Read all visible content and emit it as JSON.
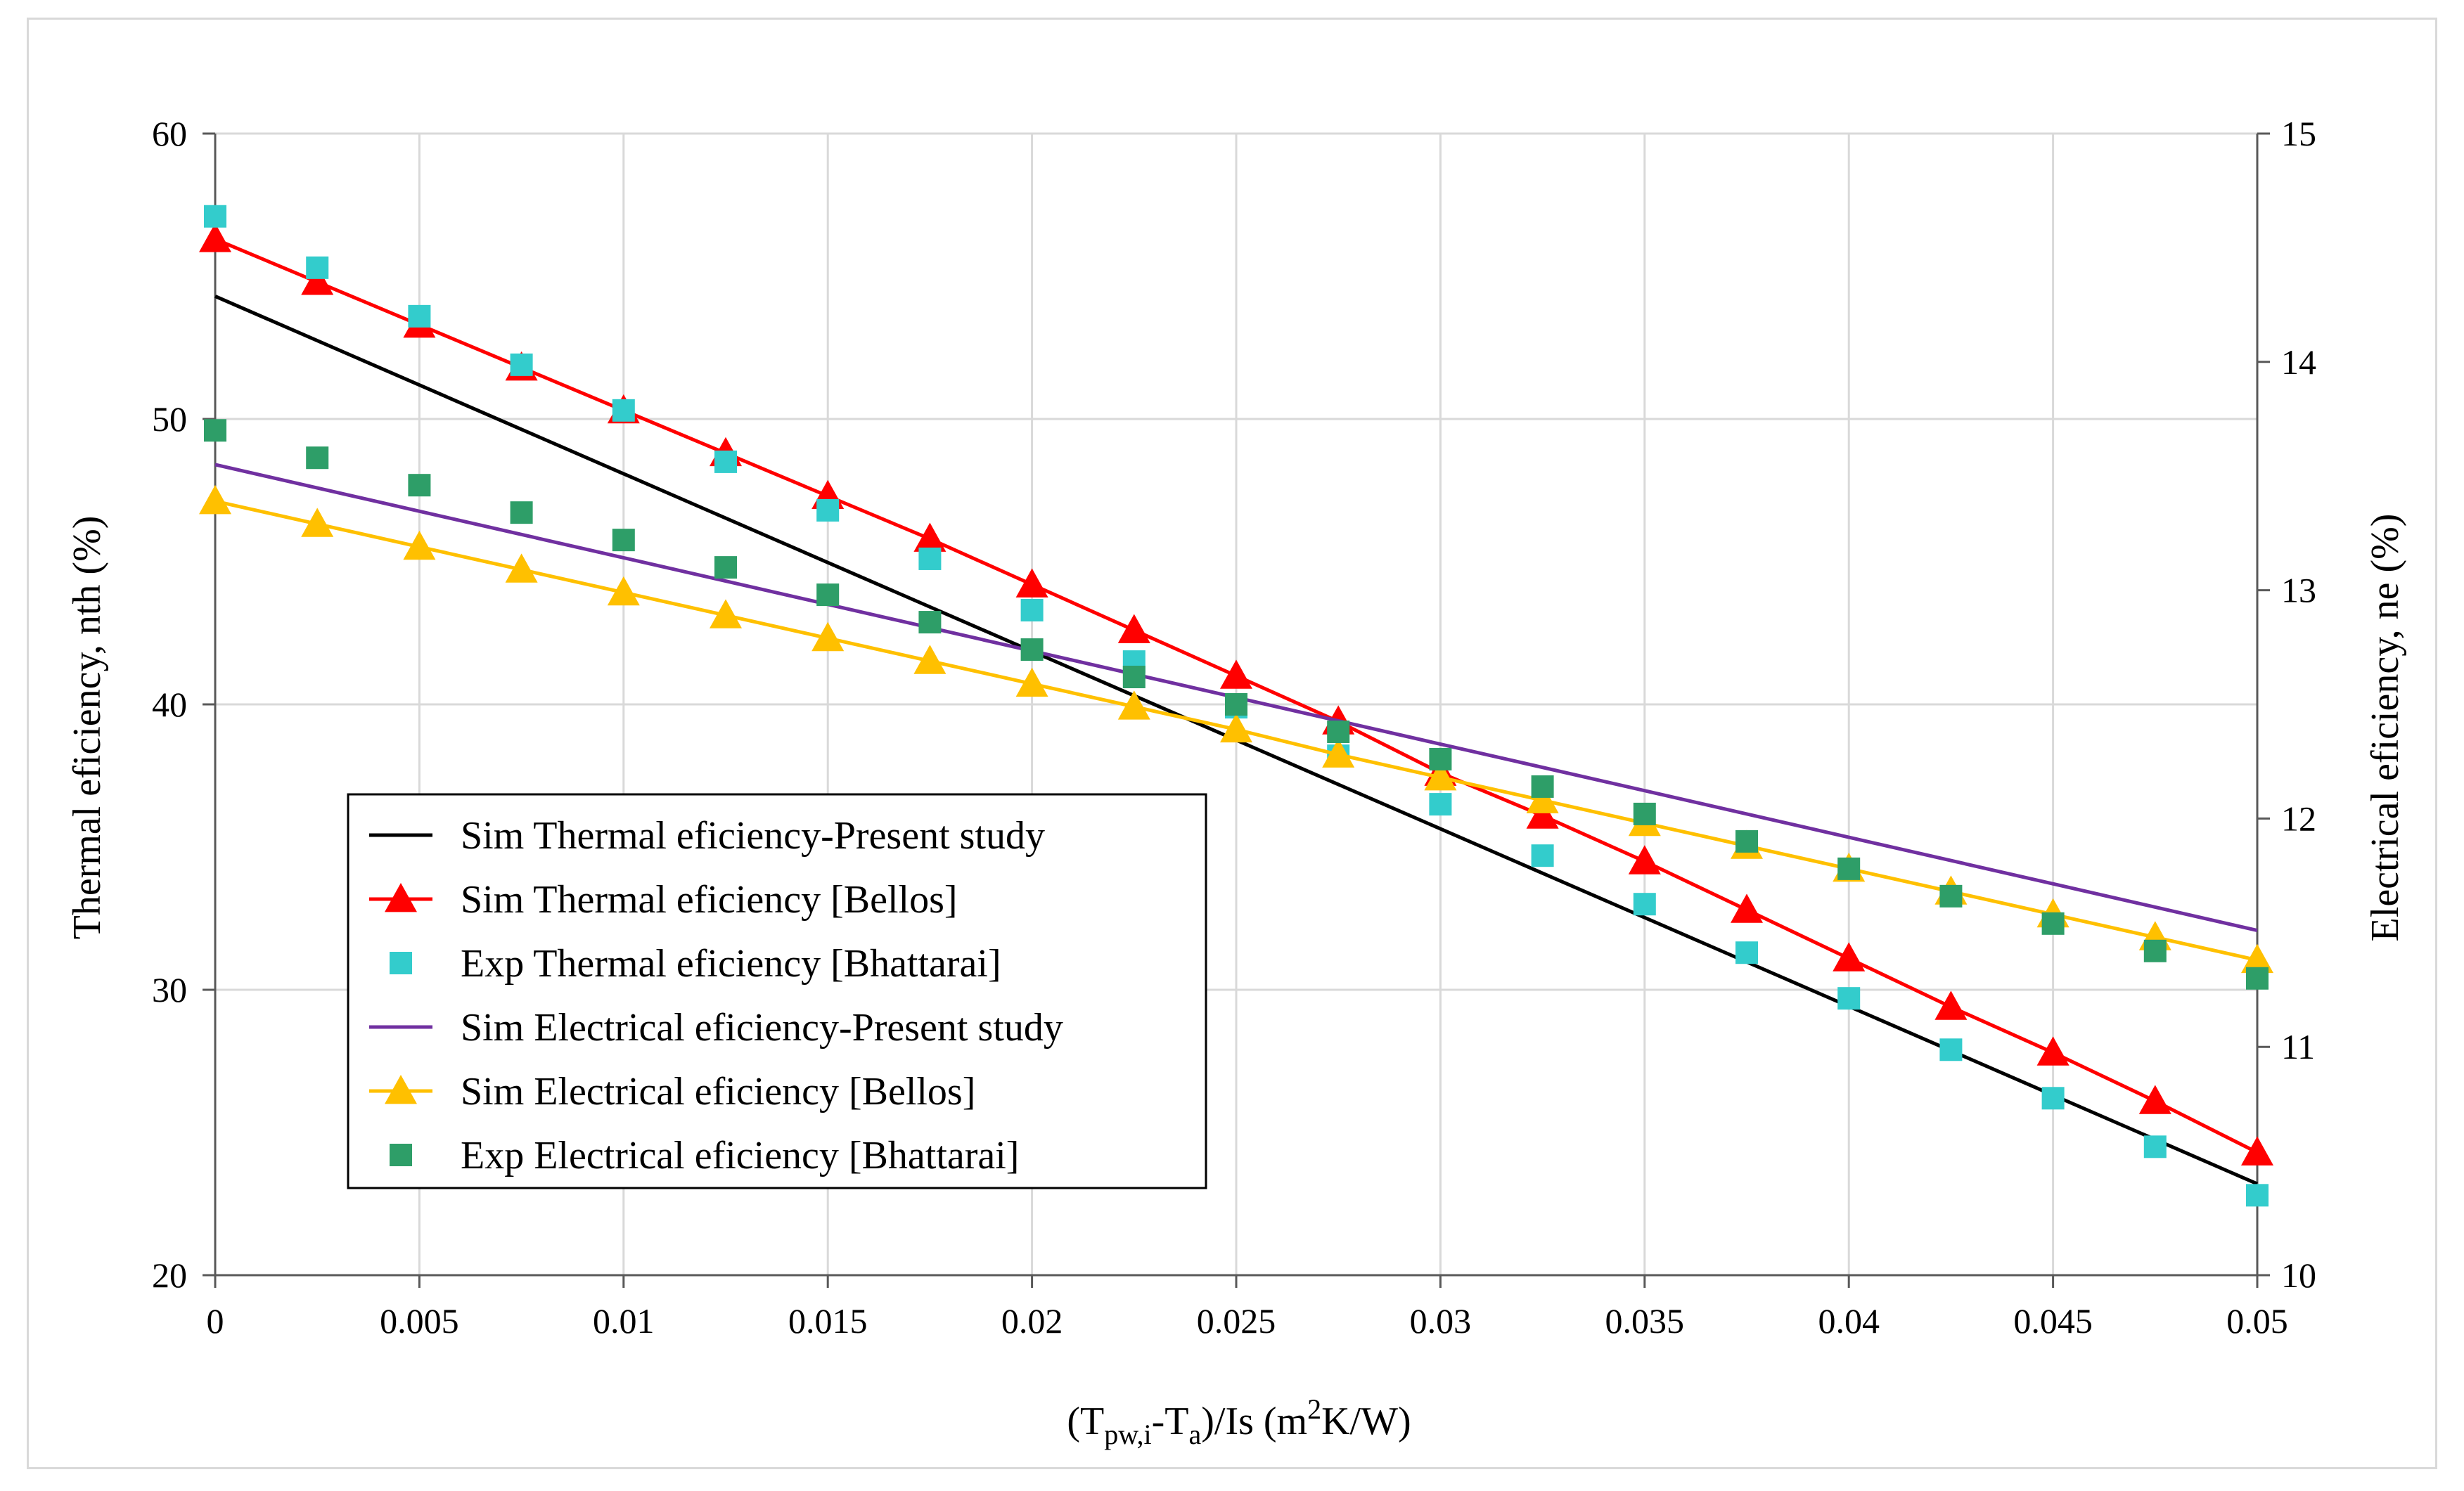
{
  "chart_data": {
    "type": "line",
    "title": "",
    "xlabel": {
      "parts": [
        "(T",
        "pw,i",
        "-T",
        "a",
        ")/Is (m",
        "2",
        "K/W)"
      ]
    },
    "ylabel_left": "Thermal eficiency, nth (%)",
    "ylabel_right": "Electrical eficiency, ne (%)",
    "xlim": [
      0,
      0.05
    ],
    "ylim_left": [
      20,
      60
    ],
    "ylim_right": [
      10,
      15
    ],
    "x_ticks": [
      0,
      0.005,
      0.01,
      0.015,
      0.02,
      0.025,
      0.03,
      0.035,
      0.04,
      0.045,
      0.05
    ],
    "x_tick_labels": [
      "0",
      "0.005",
      "0.01",
      "0.015",
      "0.02",
      "0.025",
      "0.03",
      "0.035",
      "0.04",
      "0.045",
      "0.05"
    ],
    "y_left_ticks": [
      20,
      30,
      40,
      50,
      60
    ],
    "y_left_tick_labels": [
      "20",
      "30",
      "40",
      "50",
      "60"
    ],
    "y_right_ticks": [
      10,
      11,
      12,
      13,
      14,
      15
    ],
    "y_right_tick_labels": [
      "10",
      "11",
      "12",
      "13",
      "14",
      "15"
    ],
    "grid": true,
    "legend_position": "bottom-left",
    "x": [
      0,
      0.0025,
      0.005,
      0.0075,
      0.01,
      0.0125,
      0.015,
      0.0175,
      0.02,
      0.0225,
      0.025,
      0.0275,
      0.03,
      0.0325,
      0.035,
      0.0375,
      0.04,
      0.0425,
      0.045,
      0.0475,
      0.05
    ],
    "series": [
      {
        "name": "Sim Thermal eficiency-Present study",
        "axis": "left",
        "style": "line",
        "color": "#000000",
        "x": [
          0,
          0.05
        ],
        "values": [
          54.3,
          23.2
        ]
      },
      {
        "name": "Sim Thermal eficiency [Bellos]",
        "axis": "left",
        "style": "line-triangle",
        "color": "#ff0000",
        "values": [
          56.3,
          54.8,
          53.3,
          51.8,
          50.3,
          48.8,
          47.3,
          45.8,
          44.2,
          42.6,
          41.0,
          39.4,
          37.6,
          36.1,
          34.5,
          32.8,
          31.1,
          29.4,
          27.8,
          26.1,
          24.3
        ]
      },
      {
        "name": "Exp Thermal eficiency [Bhattarai]",
        "axis": "left",
        "style": "square",
        "color": "#33cccc",
        "values": [
          57.1,
          55.3,
          53.6,
          51.9,
          50.3,
          48.5,
          46.8,
          45.1,
          43.3,
          41.5,
          39.9,
          38.2,
          36.5,
          34.7,
          33.0,
          31.3,
          29.7,
          27.9,
          26.2,
          24.5,
          22.8
        ]
      },
      {
        "name": "Sim Electrical eficiency-Present study",
        "axis": "right",
        "style": "line",
        "color": "#7030a0",
        "x": [
          0,
          0.05
        ],
        "values": [
          13.55,
          11.51
        ]
      },
      {
        "name": "Sim Electrical eficiency [Bellos]",
        "axis": "right",
        "style": "line-triangle",
        "color": "#ffc000",
        "values": [
          13.39,
          13.29,
          13.19,
          13.09,
          12.99,
          12.89,
          12.79,
          12.69,
          12.59,
          12.49,
          12.39,
          12.28,
          12.18,
          12.08,
          11.98,
          11.88,
          11.78,
          11.68,
          11.58,
          11.48,
          11.38
        ]
      },
      {
        "name": "Exp Electrical eficiency [Bhattarai]",
        "axis": "right",
        "style": "square",
        "color": "#2e9e68",
        "values": [
          13.7,
          13.58,
          13.46,
          13.34,
          13.22,
          13.1,
          12.98,
          12.86,
          12.74,
          12.62,
          12.5,
          12.38,
          12.26,
          12.14,
          12.02,
          11.9,
          11.78,
          11.66,
          11.54,
          11.42,
          11.3
        ]
      }
    ]
  }
}
